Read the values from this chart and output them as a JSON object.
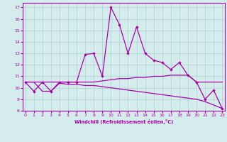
{
  "title": "",
  "xlabel": "Windchill (Refroidissement éolien,°C)",
  "ylabel": "",
  "background_color": "#d4ecec",
  "line_color": "#aa00aa",
  "grid_color": "#b0d0d0",
  "x_ticks": [
    0,
    1,
    2,
    3,
    4,
    5,
    6,
    7,
    8,
    9,
    10,
    11,
    12,
    13,
    14,
    15,
    16,
    17,
    18,
    19,
    20,
    21,
    22,
    23
  ],
  "y_ticks": [
    8,
    9,
    10,
    11,
    12,
    13,
    14,
    15,
    16,
    17
  ],
  "xlim": [
    -0.3,
    23.3
  ],
  "ylim": [
    8.0,
    17.4
  ],
  "series_main": {
    "x": [
      0,
      1,
      2,
      3,
      4,
      5,
      6,
      7,
      8,
      9,
      10,
      11,
      12,
      13,
      14,
      15,
      16,
      17,
      18,
      19,
      20,
      21,
      22,
      23
    ],
    "y": [
      10.5,
      9.7,
      10.5,
      9.7,
      10.5,
      10.5,
      10.5,
      12.9,
      13.0,
      11.0,
      17.0,
      15.5,
      13.0,
      15.3,
      13.0,
      12.4,
      12.2,
      11.6,
      12.2,
      11.1,
      10.5,
      9.0,
      9.8,
      8.2
    ]
  },
  "series_upper_flat": {
    "x": [
      0,
      1,
      2,
      3,
      4,
      5,
      6,
      7,
      8,
      9,
      10,
      11,
      12,
      13,
      14,
      15,
      16,
      17,
      18,
      19,
      20,
      21,
      22,
      23
    ],
    "y": [
      10.5,
      10.5,
      10.5,
      10.5,
      10.5,
      10.5,
      10.5,
      10.5,
      10.5,
      10.6,
      10.7,
      10.8,
      10.8,
      10.9,
      10.9,
      11.0,
      11.0,
      11.1,
      11.1,
      11.1,
      10.5,
      10.5,
      10.5,
      10.5
    ]
  },
  "series_lower_declining": {
    "x": [
      0,
      1,
      2,
      3,
      4,
      5,
      6,
      7,
      8,
      9,
      10,
      11,
      12,
      13,
      14,
      15,
      16,
      17,
      18,
      19,
      20,
      21,
      22,
      23
    ],
    "y": [
      10.5,
      10.5,
      9.7,
      9.7,
      10.4,
      10.3,
      10.3,
      10.2,
      10.2,
      10.1,
      10.0,
      9.9,
      9.8,
      9.7,
      9.6,
      9.5,
      9.4,
      9.3,
      9.2,
      9.1,
      9.0,
      8.8,
      8.5,
      8.2
    ]
  }
}
